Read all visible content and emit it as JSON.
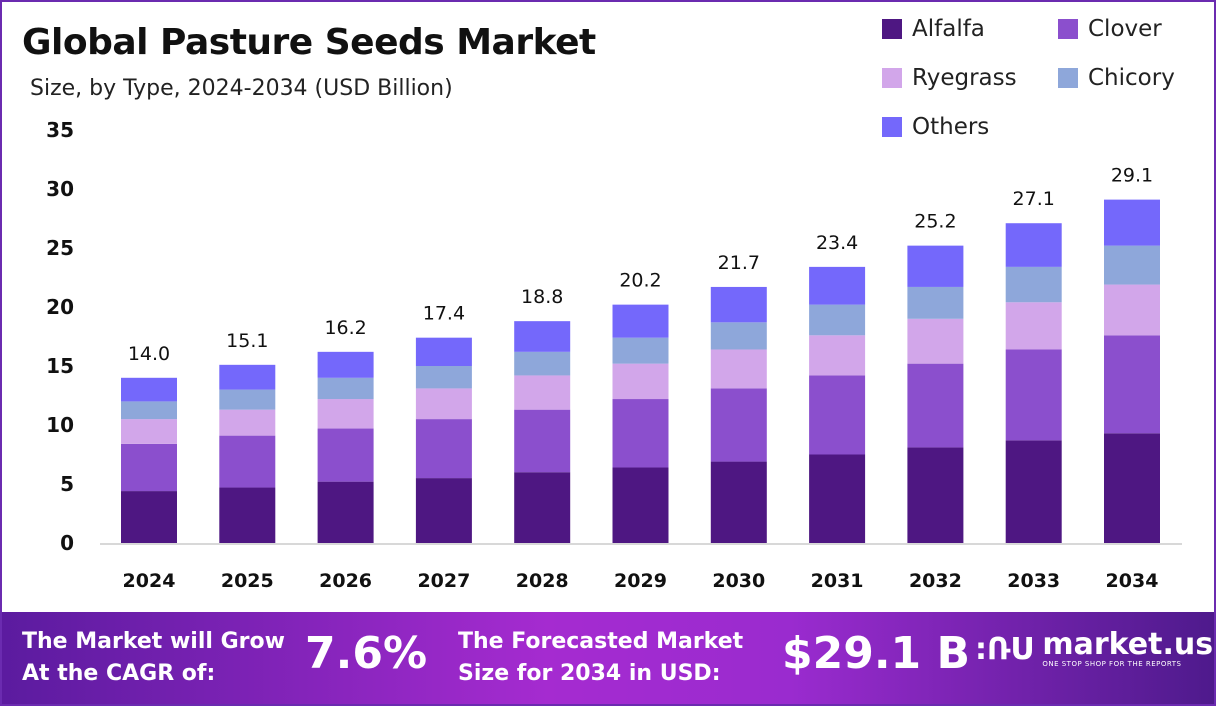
{
  "chart_data": {
    "type": "bar",
    "stacked": true,
    "title": "Global Pasture Seeds Market",
    "subtitle": "Size, by Type, 2024-2034 (USD Billion)",
    "categories": [
      "2024",
      "2025",
      "2026",
      "2027",
      "2028",
      "2029",
      "2030",
      "2031",
      "2032",
      "2033",
      "2034"
    ],
    "series": [
      {
        "name": "Alfalfa",
        "color": "#4e1782",
        "values": [
          4.4,
          4.7,
          5.2,
          5.5,
          6.0,
          6.4,
          6.9,
          7.5,
          8.1,
          8.7,
          9.3
        ]
      },
      {
        "name": "Clover",
        "color": "#8b4fcd",
        "values": [
          4.0,
          4.4,
          4.5,
          5.0,
          5.3,
          5.8,
          6.2,
          6.7,
          7.1,
          7.7,
          8.3
        ]
      },
      {
        "name": "Ryegrass",
        "color": "#d2a6ea",
        "values": [
          2.1,
          2.2,
          2.5,
          2.6,
          2.9,
          3.0,
          3.3,
          3.4,
          3.8,
          4.0,
          4.3
        ]
      },
      {
        "name": "Chicory",
        "color": "#8ea7da",
        "values": [
          1.5,
          1.7,
          1.8,
          1.9,
          2.0,
          2.2,
          2.3,
          2.6,
          2.7,
          3.0,
          3.3
        ]
      },
      {
        "name": "Others",
        "color": "#7468fb",
        "values": [
          2.0,
          2.1,
          2.2,
          2.4,
          2.6,
          2.8,
          3.0,
          3.2,
          3.5,
          3.7,
          3.9
        ]
      }
    ],
    "totals": [
      "14.0",
      "15.1",
      "16.2",
      "17.4",
      "18.8",
      "20.2",
      "21.7",
      "23.4",
      "25.2",
      "27.1",
      "29.1"
    ],
    "ylim": [
      0,
      35
    ],
    "yticks": [
      "0",
      "5",
      "10",
      "15",
      "20",
      "25",
      "30",
      "35"
    ],
    "grid": false,
    "legend_position": "top-right"
  },
  "footer": {
    "cagr_label_1": "The Market will Grow",
    "cagr_label_2": "At the CAGR of:",
    "cagr_value": "7.6%",
    "forecast_label_1": "The Forecasted Market",
    "forecast_label_2": "Size for 2034 in USD:",
    "forecast_value": "$29.1 B",
    "logo_name": "market.us",
    "logo_tagline": "ONE STOP SHOP FOR THE REPORTS"
  }
}
